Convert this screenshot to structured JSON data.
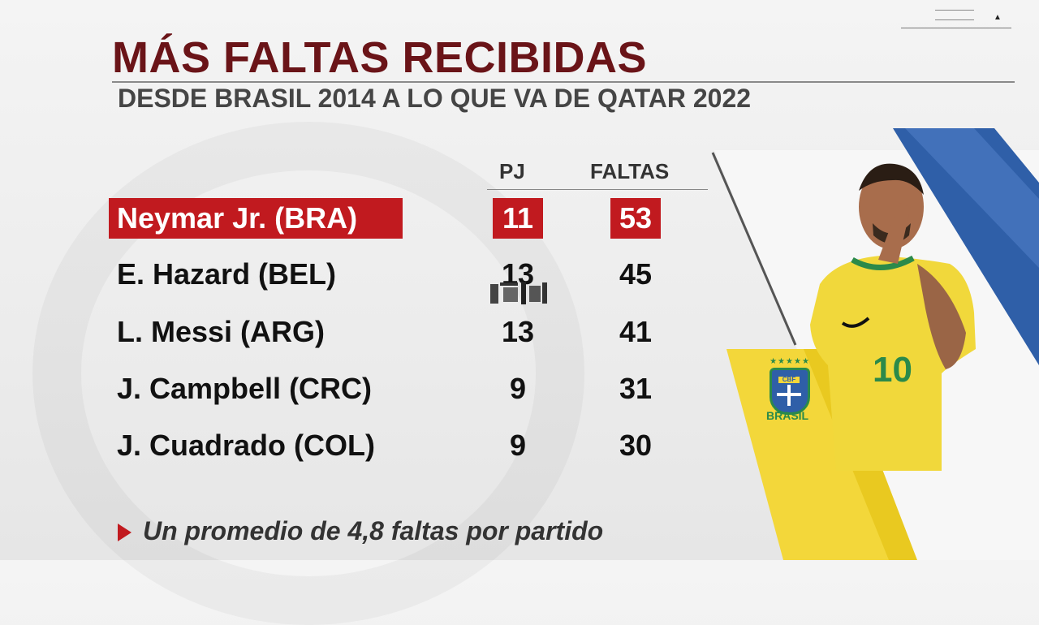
{
  "title": "MÁS FALTAS RECIBIDAS",
  "subtitle": "DESDE BRASIL 2014 A LO QUE VA DE QATAR 2022",
  "columns": {
    "pj": "PJ",
    "faltas": "FALTAS"
  },
  "rows": [
    {
      "name": "Neymar Jr. (BRA)",
      "pj": "11",
      "faltas": "53",
      "highlighted": true
    },
    {
      "name": "E. Hazard (BEL)",
      "pj": "13",
      "faltas": "45"
    },
    {
      "name": "L. Messi (ARG)",
      "pj": "13",
      "faltas": "41"
    },
    {
      "name": "J. Campbell (CRC)",
      "pj": "9",
      "faltas": "31"
    },
    {
      "name": "J. Cuadrado (COL)",
      "pj": "9",
      "faltas": "30"
    }
  ],
  "footnote": "Un promedio de 4,8 faltas por partido",
  "photo": {
    "crest_text": "CBF",
    "crest_label": "BRASIL",
    "jersey_number": "10"
  },
  "colors": {
    "title": "#6a1418",
    "highlight": "#c11a1f",
    "brazil_yellow": "#f3d73a",
    "blue_stripe": "#2f5fa8"
  },
  "icons": [
    "menu-icon",
    "caret-up-icon",
    "triangle-bullet-icon",
    "cbf-crest-icon"
  ]
}
